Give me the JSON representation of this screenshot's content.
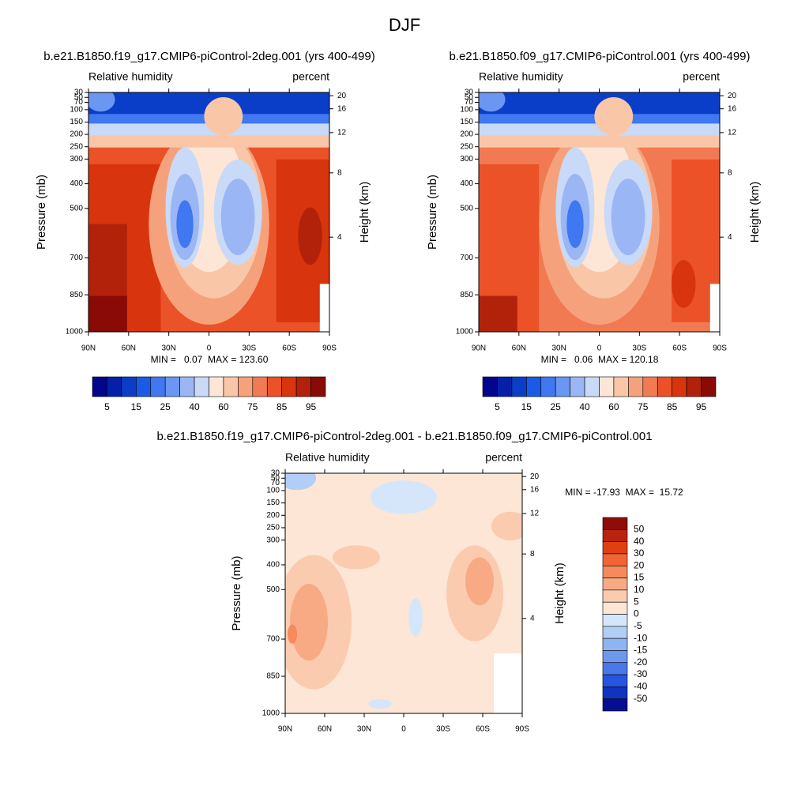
{
  "title": "DJF",
  "chart_data": [
    {
      "type": "contour",
      "title": "b.e21.B1850.f19_g17.CMIP6-piControl-2deg.001 (yrs 400-499)",
      "left_label": "Relative humidity",
      "right_label": "percent",
      "ylabel": "Pressure (mb)",
      "y2label": "Height (km)",
      "ylim": [
        1000,
        30
      ],
      "yticks": [
        30,
        50,
        70,
        100,
        150,
        200,
        250,
        300,
        400,
        500,
        700,
        850,
        1000
      ],
      "y2ticks": [
        20,
        16,
        12,
        8,
        4
      ],
      "xlim": [
        90,
        -90
      ],
      "xticks": [
        {
          "value": 90,
          "label": "90N"
        },
        {
          "value": 60,
          "label": "60N"
        },
        {
          "value": 30,
          "label": "30N"
        },
        {
          "value": 0,
          "label": "0"
        },
        {
          "value": -30,
          "label": "30S"
        },
        {
          "value": -60,
          "label": "60S"
        },
        {
          "value": -90,
          "label": "90S"
        }
      ],
      "stats": "MIN =   0.07  MAX = 123.60",
      "colorbar": {
        "orientation": "horizontal",
        "colors": [
          "#03068c",
          "#0520a8",
          "#0a3ec8",
          "#1a5ae6",
          "#3f78f0",
          "#6b96f2",
          "#9ab6f4",
          "#c8daf8",
          "#fde6d6",
          "#f9c6a8",
          "#f5a27c",
          "#f27a52",
          "#ec5228",
          "#d8340e",
          "#b2220a",
          "#8a0a08"
        ],
        "labels": [
          5,
          15,
          25,
          40,
          60,
          75,
          85,
          95
        ]
      }
    },
    {
      "type": "contour",
      "title": "b.e21.B1850.f09_g17.CMIP6-piControl.001 (yrs 400-499)",
      "left_label": "Relative humidity",
      "right_label": "percent",
      "ylabel": "Pressure (mb)",
      "y2label": "Height (km)",
      "ylim": [
        1000,
        30
      ],
      "yticks": [
        30,
        50,
        70,
        100,
        150,
        200,
        250,
        300,
        400,
        500,
        700,
        850,
        1000
      ],
      "y2ticks": [
        20,
        16,
        12,
        8,
        4
      ],
      "xlim": [
        90,
        -90
      ],
      "xticks": [
        {
          "value": 90,
          "label": "90N"
        },
        {
          "value": 60,
          "label": "60N"
        },
        {
          "value": 30,
          "label": "30N"
        },
        {
          "value": 0,
          "label": "0"
        },
        {
          "value": -30,
          "label": "30S"
        },
        {
          "value": -60,
          "label": "60S"
        },
        {
          "value": -90,
          "label": "90S"
        }
      ],
      "stats": "MIN =   0.06  MAX = 120.18",
      "colorbar": {
        "orientation": "horizontal",
        "colors": [
          "#03068c",
          "#0520a8",
          "#0a3ec8",
          "#1a5ae6",
          "#3f78f0",
          "#6b96f2",
          "#9ab6f4",
          "#c8daf8",
          "#fde6d6",
          "#f9c6a8",
          "#f5a27c",
          "#f27a52",
          "#ec5228",
          "#d8340e",
          "#b2220a",
          "#8a0a08"
        ],
        "labels": [
          5,
          15,
          25,
          40,
          60,
          75,
          85,
          95
        ]
      }
    },
    {
      "type": "contour",
      "title": "b.e21.B1850.f19_g17.CMIP6-piControl-2deg.001 - b.e21.B1850.f09_g17.CMIP6-piControl.001",
      "left_label": "Relative humidity",
      "right_label": "percent",
      "ylabel": "Pressure (mb)",
      "y2label": "Height (km)",
      "ylim": [
        1000,
        30
      ],
      "yticks": [
        30,
        50,
        70,
        100,
        150,
        200,
        250,
        300,
        400,
        500,
        700,
        850,
        1000
      ],
      "y2ticks": [
        20,
        16,
        12,
        8,
        4
      ],
      "xlim": [
        90,
        -90
      ],
      "xticks": [
        {
          "value": 90,
          "label": "90N"
        },
        {
          "value": 60,
          "label": "60N"
        },
        {
          "value": 30,
          "label": "30N"
        },
        {
          "value": 0,
          "label": "0"
        },
        {
          "value": -30,
          "label": "30S"
        },
        {
          "value": -60,
          "label": "60S"
        },
        {
          "value": -90,
          "label": "90S"
        }
      ],
      "stats": "MIN = -17.93  MAX =  15.72",
      "colorbar": {
        "orientation": "vertical",
        "colors": [
          "#8e0c0a",
          "#b9240c",
          "#e0400f",
          "#f26436",
          "#f58a5c",
          "#f8aa85",
          "#fbcbb0",
          "#fde6d6",
          "#d6e6fa",
          "#b2cef6",
          "#8fb4f2",
          "#6c98ee",
          "#4a78ea",
          "#2855e0",
          "#1034c0",
          "#050e92"
        ],
        "labels": [
          50,
          40,
          30,
          20,
          15,
          10,
          5,
          0,
          -5,
          -10,
          -15,
          -20,
          -30,
          -40,
          -50
        ]
      }
    }
  ]
}
